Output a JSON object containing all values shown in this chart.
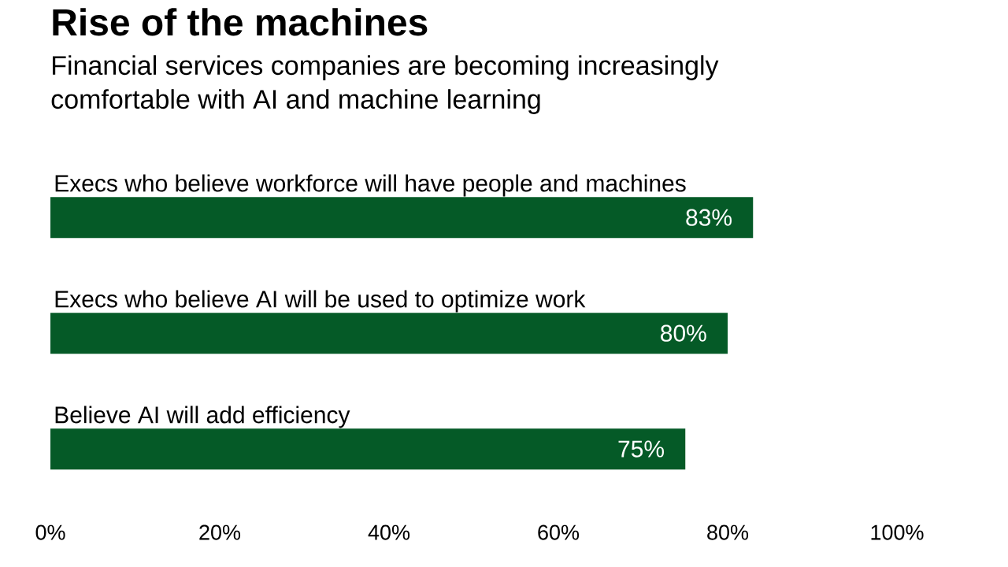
{
  "chart_data": {
    "type": "bar",
    "orientation": "horizontal",
    "title": "Rise of the machines",
    "subtitle": "Financial services companies are becoming increasingly comfortable with AI and machine learning",
    "categories": [
      "Execs who believe workforce will have people and machines",
      "Execs who believe AI will be used to optimize work",
      "Believe AI will add efficiency"
    ],
    "values": [
      83,
      80,
      75
    ],
    "value_labels": [
      "83%",
      "80%",
      "75%"
    ],
    "color": "#055a27",
    "xlim": [
      0,
      100
    ],
    "xticks": [
      {
        "value": 0,
        "label": "0%"
      },
      {
        "value": 20,
        "label": "20%"
      },
      {
        "value": 40,
        "label": "40%"
      },
      {
        "value": 60,
        "label": "60%"
      },
      {
        "value": 80,
        "label": "80%"
      },
      {
        "value": 100,
        "label": "100%"
      }
    ]
  }
}
